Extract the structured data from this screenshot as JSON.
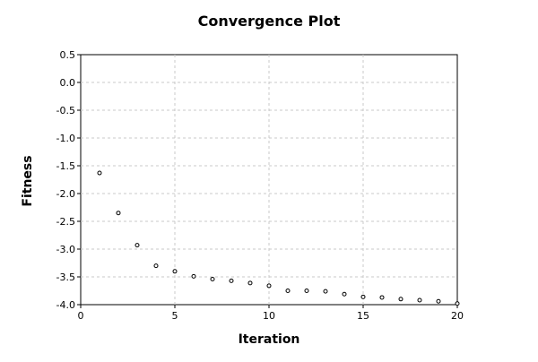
{
  "chart_data": {
    "type": "scatter",
    "title": "Convergence Plot",
    "xlabel": "Iteration",
    "ylabel": "Fitness",
    "xlim": [
      0,
      20
    ],
    "ylim": [
      -4.0,
      0.5
    ],
    "x_ticks": [
      0,
      5,
      10,
      15,
      20
    ],
    "y_ticks": [
      0.5,
      0.0,
      -0.5,
      -1.0,
      -1.5,
      -2.0,
      -2.5,
      -3.0,
      -3.5,
      -4.0
    ],
    "y_tick_labels": [
      "0.5",
      "0.0",
      "-0.5",
      "-1.0",
      "-1.5",
      "-2.0",
      "-2.5",
      "-3.0",
      "-3.5",
      "-4.0"
    ],
    "x_tick_labels": [
      "0",
      "5",
      "10",
      "15",
      "20"
    ],
    "grid": true,
    "series": [
      {
        "x": [
          1,
          2,
          3,
          4,
          5,
          6,
          7,
          8,
          9,
          10,
          11,
          12,
          13,
          14,
          15,
          16,
          17,
          18,
          19,
          20
        ],
        "y": [
          -1.63,
          -2.35,
          -2.93,
          -3.3,
          -3.4,
          -3.49,
          -3.54,
          -3.57,
          -3.61,
          -3.66,
          -3.75,
          -3.75,
          -3.76,
          -3.81,
          -3.86,
          -3.87,
          -3.9,
          -3.92,
          -3.94,
          -3.98
        ]
      }
    ],
    "colors": {
      "marker_edge": "#000000",
      "marker_fill": "#ffffff",
      "grid": "#c8c8c8"
    }
  }
}
